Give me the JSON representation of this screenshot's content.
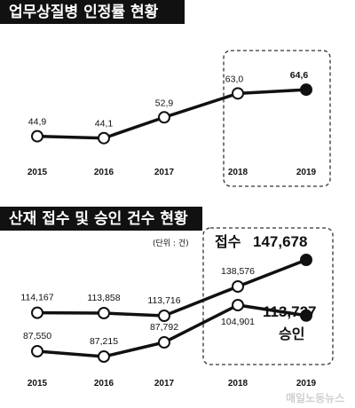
{
  "colors": {
    "title_bg": "#111111",
    "line": "#111111",
    "marker_open": "#ffffff",
    "marker_filled": "#111111"
  },
  "watermark": "매일노동뉴스",
  "chart_data": [
    {
      "type": "line",
      "title": "업무상질병 인정률 현황",
      "categories": [
        "2015",
        "2016",
        "2017",
        "2018",
        "2019"
      ],
      "series": [
        {
          "values": [
            44.9,
            44.1,
            52.9,
            63.0,
            64.6
          ],
          "labels": [
            "44,9",
            "44,1",
            "52,9",
            "63,0",
            "64,6"
          ]
        }
      ],
      "highlight": [
        "2018",
        "2019"
      ],
      "grid": false
    },
    {
      "type": "line",
      "title": "산재 접수 및 승인 건수 현황",
      "unit": "(단위 : 건)",
      "categories": [
        "2015",
        "2016",
        "2017",
        "2018",
        "2019"
      ],
      "series": [
        {
          "name": "접수",
          "values": [
            114167,
            113858,
            113716,
            138576,
            147678
          ],
          "labels": [
            "114,167",
            "113,858",
            "113,716",
            "138,576",
            "147,678"
          ]
        },
        {
          "name": "승인",
          "values": [
            87550,
            87215,
            87792,
            104901,
            113727
          ],
          "labels": [
            "87,550",
            "87,215",
            "87,792",
            "104,901",
            "113,727"
          ]
        }
      ],
      "highlight": [
        "2018",
        "2019"
      ],
      "grid": false
    }
  ]
}
